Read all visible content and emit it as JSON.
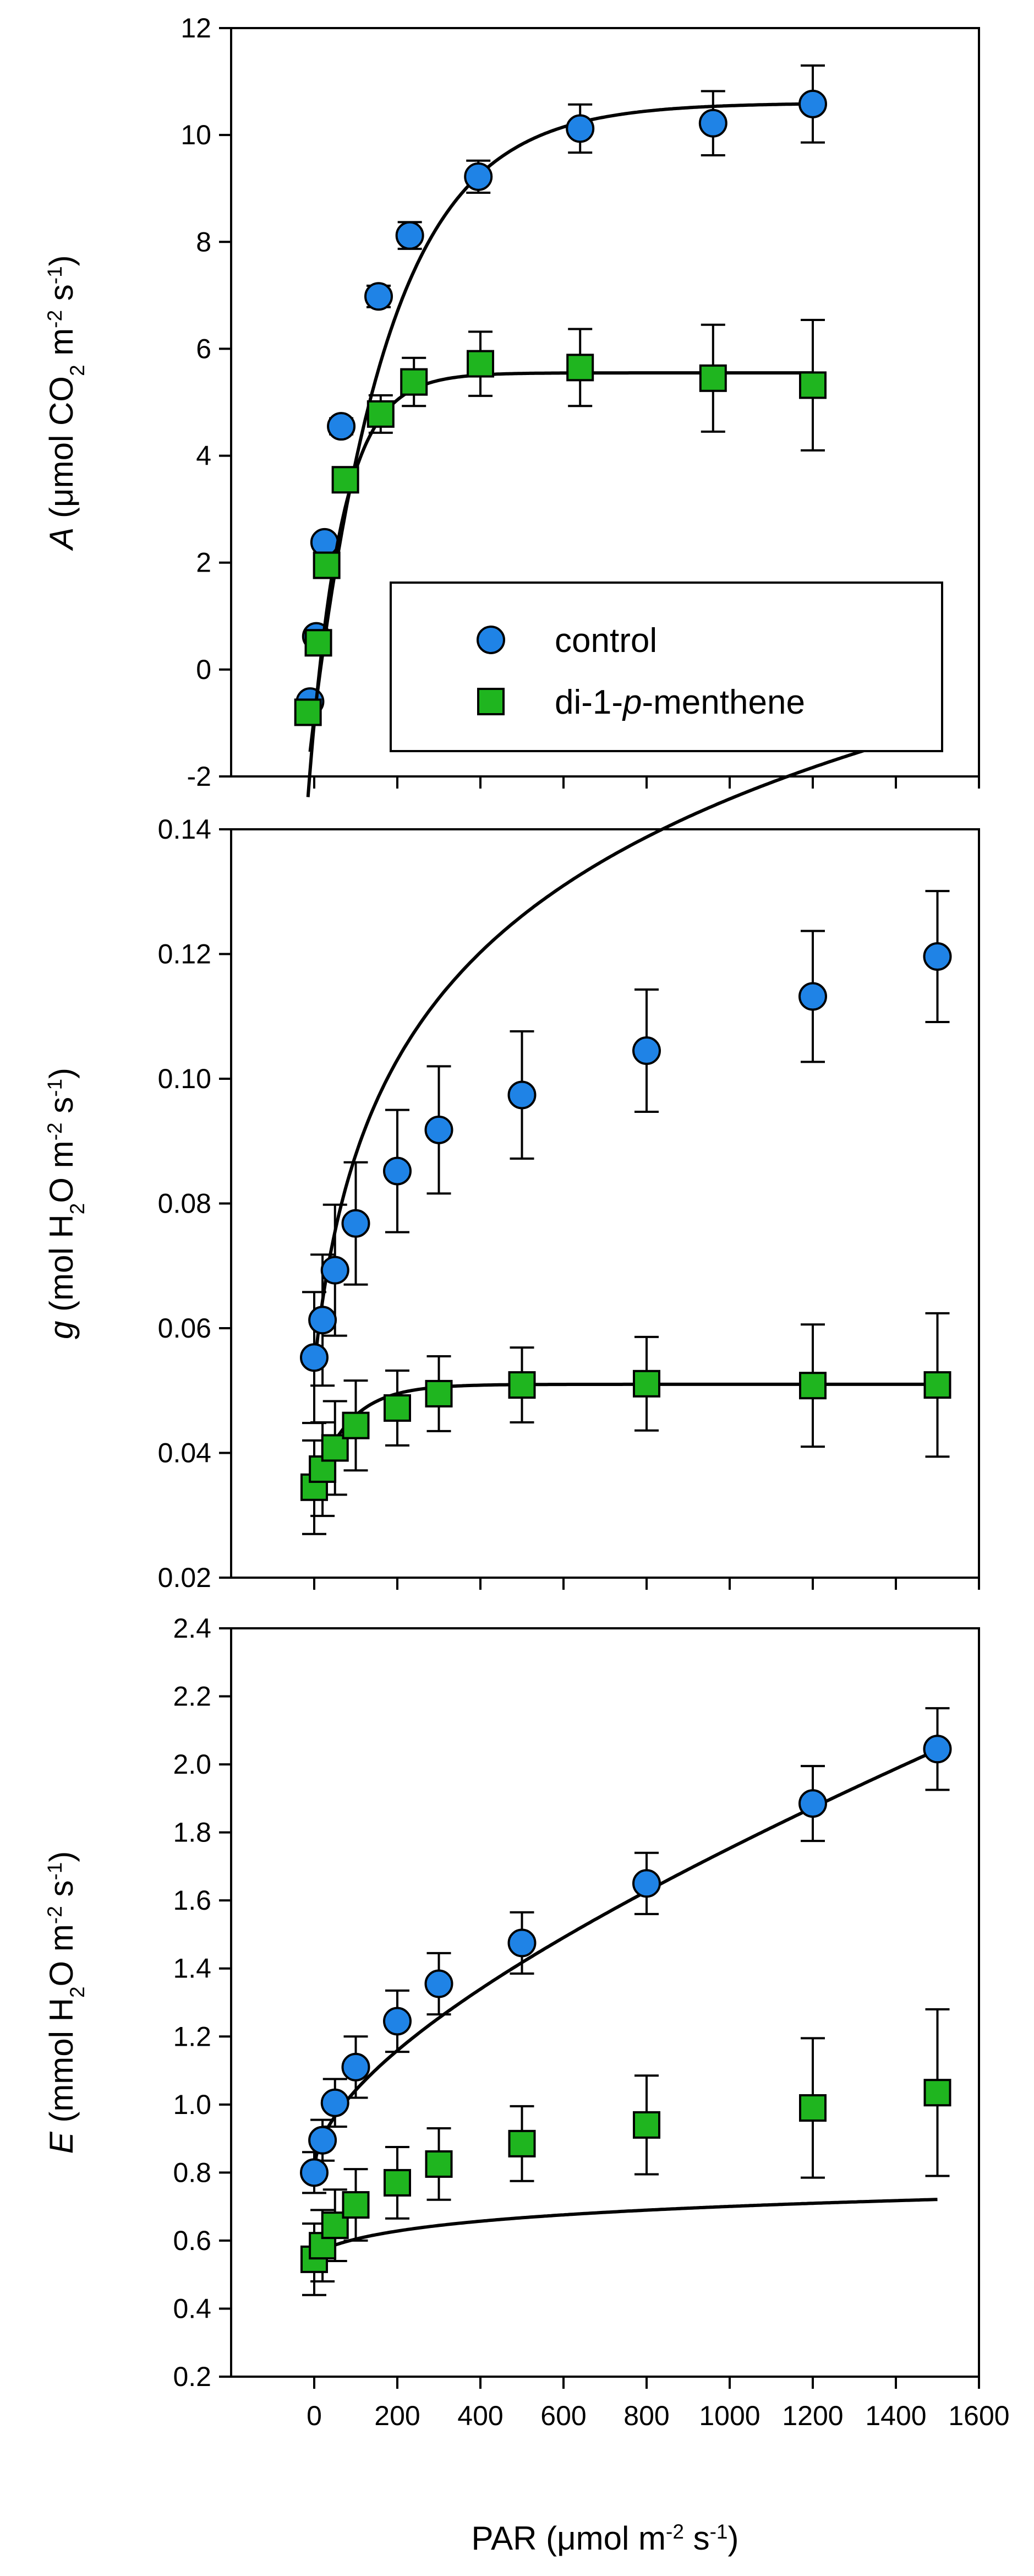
{
  "colors": {
    "control": "#1f83e6",
    "treated": "#1fb51f",
    "stroke": "#000000",
    "background": "#ffffff"
  },
  "legend": {
    "entries": [
      {
        "series": "control",
        "marker": "circle",
        "parts": [
          {
            "text": "control",
            "italic": false
          }
        ]
      },
      {
        "series": "treated",
        "marker": "square",
        "parts": [
          {
            "text": "di-1-",
            "italic": false
          },
          {
            "text": "p",
            "italic": true
          },
          {
            "text": "-menthene",
            "italic": false
          }
        ]
      }
    ]
  },
  "x_axis": {
    "range": [
      -200,
      1600
    ],
    "ticks": [
      0,
      200,
      400,
      600,
      800,
      1000,
      1200,
      1400,
      1600
    ],
    "tick_labels": [
      "0",
      "200",
      "400",
      "600",
      "800",
      "1000",
      "1200",
      "1400",
      "1600"
    ],
    "title": "PAR (μmol m-2 s-1)",
    "title_parts": [
      {
        "t": "PAR ("
      },
      {
        "t": "μ"
      },
      {
        "t": "mol m"
      },
      {
        "t": "-2",
        "sup": true
      },
      {
        "t": " s"
      },
      {
        "t": "-1",
        "sup": true
      },
      {
        "t": ")"
      }
    ]
  },
  "chart_data": [
    {
      "type": "scatter",
      "panel": "A",
      "ylabel": "A (μmol CO2 m-2 s-1)",
      "ylabel_parts": [
        {
          "t": "A",
          "italic": true
        },
        {
          "t": " ("
        },
        {
          "t": "μ"
        },
        {
          "t": "mol CO"
        },
        {
          "t": "2",
          "sub": true
        },
        {
          "t": " m"
        },
        {
          "t": "-2",
          "sup": true
        },
        {
          "t": " s"
        },
        {
          "t": "-1",
          "sup": true
        },
        {
          "t": ")"
        }
      ],
      "xlim": [
        -200,
        1600
      ],
      "ylim": [
        -2,
        12
      ],
      "yticks": [
        -2,
        0,
        2,
        4,
        6,
        8,
        10,
        12
      ],
      "ytick_labels": [
        "-2",
        "0",
        "2",
        "4",
        "6",
        "8",
        "10",
        "12"
      ],
      "series": [
        {
          "name": "control",
          "marker": "circle",
          "x": [
            -10,
            5,
            25,
            65,
            155,
            230,
            395,
            640,
            960,
            1200
          ],
          "y": [
            -0.6,
            0.62,
            2.38,
            4.55,
            6.98,
            8.12,
            9.22,
            10.12,
            10.22,
            10.58
          ],
          "err": [
            0.1,
            0.1,
            0.12,
            0.15,
            0.2,
            0.25,
            0.3,
            0.45,
            0.6,
            0.72
          ],
          "fit": {
            "model": "exp-rise",
            "amax": 10.6,
            "rd": -0.9,
            "k": 0.0054
          }
        },
        {
          "name": "di-1-p-menthene",
          "marker": "square",
          "x": [
            -15,
            10,
            30,
            75,
            160,
            240,
            400,
            640,
            960,
            1200
          ],
          "y": [
            -0.8,
            0.5,
            1.95,
            3.55,
            4.78,
            5.38,
            5.72,
            5.65,
            5.45,
            5.32
          ],
          "err": [
            0.1,
            0.1,
            0.1,
            0.2,
            0.35,
            0.45,
            0.6,
            0.72,
            1.0,
            1.22
          ],
          "fit": {
            "model": "exp-rise",
            "amax": 5.55,
            "rd": -1.0,
            "k": 0.0128
          }
        }
      ]
    },
    {
      "type": "scatter",
      "panel": "g",
      "ylabel": "g (mol H2O m-2 s-1)",
      "ylabel_parts": [
        {
          "t": "g",
          "italic": true
        },
        {
          "t": " (mol H"
        },
        {
          "t": "2",
          "sub": true
        },
        {
          "t": "O m"
        },
        {
          "t": "-2",
          "sup": true
        },
        {
          "t": " s"
        },
        {
          "t": "-1",
          "sup": true
        },
        {
          "t": ")"
        }
      ],
      "xlim": [
        -200,
        1600
      ],
      "ylim": [
        0.02,
        0.14
      ],
      "yticks": [
        0.02,
        0.04,
        0.06,
        0.08,
        0.1,
        0.12,
        0.14
      ],
      "ytick_labels": [
        "0.02",
        "0.04",
        "0.06",
        "0.08",
        "0.10",
        "0.12",
        "0.14"
      ],
      "series": [
        {
          "name": "control",
          "marker": "circle",
          "x": [
            0,
            20,
            50,
            100,
            200,
            300,
            500,
            800,
            1200,
            1500
          ],
          "y": [
            0.0553,
            0.0613,
            0.0693,
            0.0768,
            0.0852,
            0.0918,
            0.0974,
            0.1045,
            0.1132,
            0.1196
          ],
          "err": [
            0.0105,
            0.0105,
            0.0105,
            0.0098,
            0.0098,
            0.0102,
            0.0102,
            0.0098,
            0.0105,
            0.0105
          ],
          "fit": {
            "model": "log",
            "a": 0.0535,
            "b": 0.0662,
            "c": 0.023
          }
        },
        {
          "name": "di-1-p-menthene",
          "marker": "square",
          "x": [
            0,
            20,
            50,
            100,
            200,
            300,
            500,
            800,
            1200,
            1500
          ],
          "y": [
            0.0345,
            0.0374,
            0.0408,
            0.0444,
            0.0472,
            0.0495,
            0.0509,
            0.0511,
            0.0508,
            0.0509
          ],
          "err": [
            0.0075,
            0.0075,
            0.0075,
            0.0072,
            0.006,
            0.006,
            0.006,
            0.0075,
            0.0098,
            0.0115
          ],
          "fit": {
            "model": "exp-rise",
            "amax": 0.051,
            "rd": 0.0345,
            "k": 0.012
          }
        }
      ]
    },
    {
      "type": "scatter",
      "panel": "E",
      "ylabel": "E (mmol H2O m-2 s-1)",
      "ylabel_parts": [
        {
          "t": "E",
          "italic": true
        },
        {
          "t": " (mmol H"
        },
        {
          "t": "2",
          "sub": true
        },
        {
          "t": "O m"
        },
        {
          "t": "-2",
          "sup": true
        },
        {
          "t": " s"
        },
        {
          "t": "-1",
          "sup": true
        },
        {
          "t": ")"
        }
      ],
      "xlim": [
        -200,
        1600
      ],
      "ylim": [
        0.2,
        2.4
      ],
      "yticks": [
        0.2,
        0.4,
        0.6,
        0.8,
        1.0,
        1.2,
        1.4,
        1.6,
        1.8,
        2.0,
        2.2,
        2.4
      ],
      "ytick_labels": [
        "0.2",
        "0.4",
        "0.6",
        "0.8",
        "1.0",
        "1.2",
        "1.4",
        "1.6",
        "1.8",
        "2.0",
        "2.2",
        "2.4"
      ],
      "series": [
        {
          "name": "control",
          "marker": "circle",
          "x": [
            0,
            20,
            50,
            100,
            200,
            300,
            500,
            800,
            1200,
            1500
          ],
          "y": [
            0.8,
            0.895,
            1.005,
            1.11,
            1.245,
            1.355,
            1.475,
            1.65,
            1.885,
            2.045
          ],
          "err": [
            0.06,
            0.06,
            0.07,
            0.09,
            0.09,
            0.09,
            0.09,
            0.09,
            0.11,
            0.12
          ],
          "fit": {
            "model": "lin-sqrt",
            "a": 0.8,
            "b": 0.0215,
            "c": 0.0002734
          }
        },
        {
          "name": "di-1-p-menthene",
          "marker": "square",
          "x": [
            0,
            20,
            50,
            100,
            200,
            300,
            500,
            800,
            1200,
            1500
          ],
          "y": [
            0.545,
            0.585,
            0.645,
            0.705,
            0.77,
            0.825,
            0.885,
            0.94,
            0.99,
            1.035
          ],
          "err": [
            0.105,
            0.105,
            0.105,
            0.105,
            0.105,
            0.105,
            0.11,
            0.145,
            0.205,
            0.245
          ],
          "fit": {
            "model": "log",
            "a": 0.5611,
            "b": 0.1237,
            "c": 0.0124
          }
        }
      ]
    }
  ]
}
